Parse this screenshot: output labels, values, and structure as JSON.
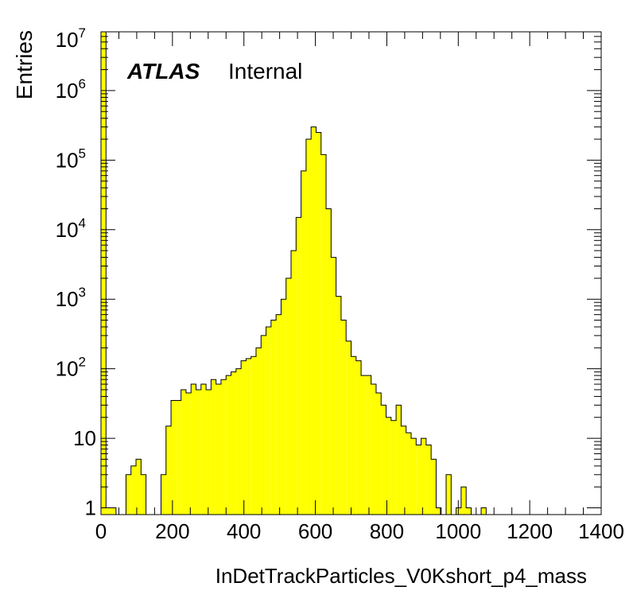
{
  "chart_data": {
    "type": "histogram",
    "xlabel": "InDetTrackParticles_V0Kshort_p4_mass",
    "ylabel": "Entries",
    "label_bold": "ATLAS",
    "label_normal": "Internal",
    "xlim": [
      0,
      1400
    ],
    "ylim": [
      0.8,
      7000000
    ],
    "yscale": "log",
    "bin_width": 14,
    "x_ticks": [
      0,
      200,
      400,
      600,
      800,
      1000,
      1200,
      1400
    ],
    "y_ticks": [
      {
        "value": 1,
        "base": "1",
        "exp": ""
      },
      {
        "value": 10,
        "base": "10",
        "exp": ""
      },
      {
        "value": 100,
        "base": "10",
        "exp": "2"
      },
      {
        "value": 1000,
        "base": "10",
        "exp": "3"
      },
      {
        "value": 10000,
        "base": "10",
        "exp": "4"
      },
      {
        "value": 100000,
        "base": "10",
        "exp": "5"
      },
      {
        "value": 1000000,
        "base": "10",
        "exp": "6"
      },
      {
        "value": 10000000,
        "base": "10",
        "exp": "7"
      }
    ],
    "fill_color": "#ffff00",
    "line_color": "#000000",
    "values": [
      7000000,
      1,
      1,
      0,
      0,
      3,
      4,
      5,
      3,
      0,
      0,
      0,
      3,
      15,
      35,
      35,
      50,
      45,
      60,
      50,
      60,
      50,
      70,
      60,
      70,
      80,
      90,
      100,
      130,
      140,
      150,
      200,
      300,
      400,
      500,
      600,
      1000,
      2000,
      5000,
      15000,
      70000,
      200000,
      300000,
      250000,
      120000,
      20000,
      4000,
      1100,
      500,
      250,
      150,
      130,
      80,
      80,
      60,
      45,
      30,
      20,
      18,
      30,
      15,
      12,
      10,
      8,
      10,
      8,
      5,
      1,
      0,
      3,
      0,
      1,
      2,
      1,
      0,
      0,
      1,
      0,
      0,
      0,
      0,
      0,
      0,
      0,
      0,
      0,
      0,
      0,
      0,
      0,
      0,
      0,
      0,
      0,
      0,
      0,
      0,
      0,
      0,
      0
    ]
  }
}
